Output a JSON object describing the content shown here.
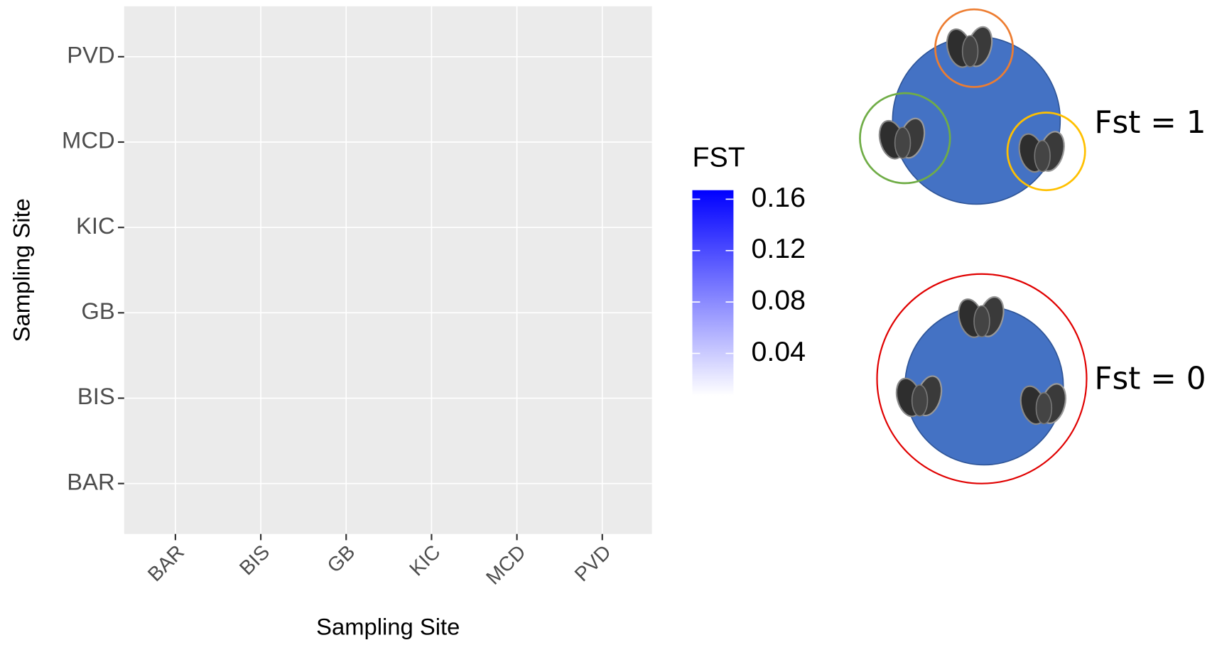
{
  "chart_data": {
    "type": "heatmap",
    "x_label": "Sampling Site",
    "y_label": "Sampling Site",
    "x_categories": [
      "BAR",
      "BIS",
      "GB",
      "KIC",
      "MCD",
      "PVD"
    ],
    "y_categories": [
      "BAR",
      "BIS",
      "GB",
      "KIC",
      "MCD",
      "PVD"
    ],
    "colorbar": {
      "title": "FST",
      "clim": [
        0.007,
        0.167
      ],
      "ticks": [
        0.04,
        0.08,
        0.12,
        0.16
      ],
      "low_color": "#ffffff",
      "high_color": "#0000ff"
    },
    "panel_color": "#ebebeb",
    "grid": true,
    "annotations": [
      "Fst = 1",
      "Fst = 0"
    ]
  }
}
